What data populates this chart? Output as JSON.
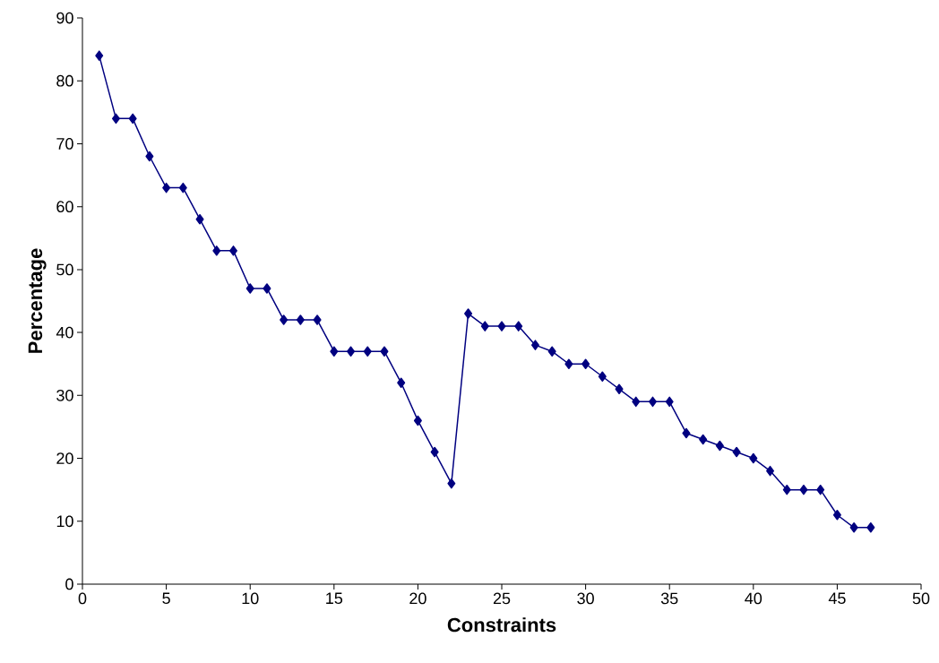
{
  "chart_data": {
    "type": "line",
    "xlabel": "Constraints",
    "ylabel": "Percentage",
    "x": [
      1,
      2,
      3,
      4,
      5,
      6,
      7,
      8,
      9,
      10,
      11,
      12,
      13,
      14,
      15,
      16,
      17,
      18,
      19,
      20,
      21,
      22,
      23,
      24,
      25,
      26,
      27,
      28,
      29,
      30,
      31,
      32,
      33,
      34,
      35,
      36,
      37,
      38,
      39,
      40,
      41,
      42,
      43,
      44,
      45,
      46,
      47
    ],
    "series": [
      {
        "color": "#000080",
        "values": [
          84,
          74,
          74,
          68,
          63,
          63,
          58,
          53,
          53,
          47,
          47,
          42,
          42,
          42,
          37,
          37,
          37,
          37,
          32,
          26,
          21,
          16,
          43,
          41,
          41,
          41,
          38,
          37,
          35,
          35,
          33,
          31,
          29,
          29,
          29,
          24,
          23,
          22,
          21,
          20,
          18,
          15,
          15,
          15,
          11,
          9,
          9
        ]
      }
    ],
    "xlim": [
      0,
      50
    ],
    "ylim": [
      0,
      90
    ],
    "xticks": [
      0,
      5,
      10,
      15,
      20,
      25,
      30,
      35,
      40,
      45,
      50
    ],
    "yticks": [
      0,
      10,
      20,
      30,
      40,
      50,
      60,
      70,
      80,
      90
    ],
    "marker": "diamond",
    "line_style": "solid"
  }
}
